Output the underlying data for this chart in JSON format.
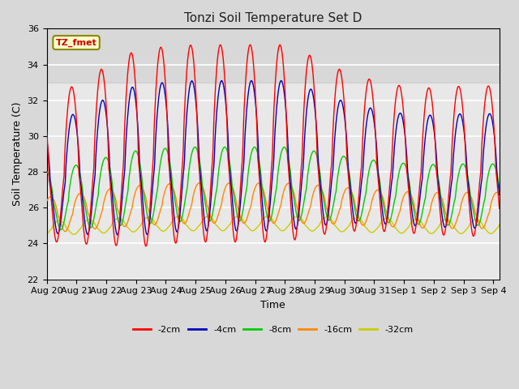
{
  "title": "Tonzi Soil Temperature Set D",
  "xlabel": "Time",
  "ylabel": "Soil Temperature (C)",
  "ylim": [
    22,
    36
  ],
  "x_tick_labels": [
    "Aug 20",
    "Aug 21",
    "Aug 22",
    "Aug 23",
    "Aug 24",
    "Aug 25",
    "Aug 26",
    "Aug 27",
    "Aug 28",
    "Aug 29",
    "Aug 30",
    "Aug 31",
    "Sep 1",
    "Sep 2",
    "Sep 3",
    "Sep 4"
  ],
  "legend_label": "TZ_fmet",
  "series_labels": [
    "-2cm",
    "-4cm",
    "-8cm",
    "-16cm",
    "-32cm"
  ],
  "series_colors": [
    "#ff0000",
    "#0000bb",
    "#00cc00",
    "#ff8800",
    "#cccc00"
  ],
  "background_color": "#d8d8d8",
  "plot_bg_color": "#e8e8e8",
  "grid_color": "#ffffff",
  "line_width": 1.0,
  "n_days": 15.2,
  "n_pts": 730,
  "peak_hour": 14.0,
  "trough_hour": 2.0,
  "means": [
    27.5,
    27.2,
    26.2,
    25.5,
    24.8
  ],
  "peak_amps": [
    6.0,
    4.5,
    2.2,
    1.2,
    0.45
  ],
  "trough_amps": [
    4.5,
    3.5,
    1.8,
    1.0,
    0.35
  ],
  "phase_delays_hours": [
    0,
    1.0,
    3.5,
    7.0,
    14.0
  ],
  "amp_envelope": [
    0.75,
    0.85,
    0.95,
    1.05,
    1.05,
    1.05,
    1.05,
    1.05,
    1.05,
    0.95,
    0.85,
    0.8,
    0.78,
    0.78,
    0.8
  ],
  "mean_drift": [
    0.0,
    0.3,
    0.7,
    1.0,
    1.2,
    1.3,
    1.3,
    1.3,
    1.3,
    1.2,
    1.0,
    0.8,
    0.6,
    0.5,
    0.5
  ]
}
